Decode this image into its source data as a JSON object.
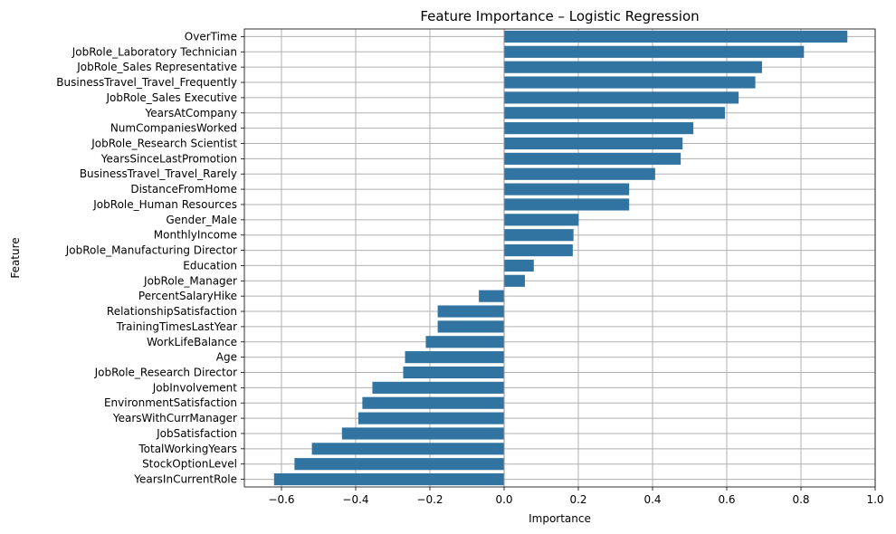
{
  "chart_data": {
    "type": "bar",
    "orientation": "horizontal",
    "title": "Feature Importance – Logistic Regression",
    "xlabel": "Importance",
    "ylabel": "Feature",
    "xlim": [
      -0.7,
      1.0
    ],
    "xticks": [
      -0.6,
      -0.4,
      -0.2,
      0.0,
      0.2,
      0.4,
      0.6,
      0.8,
      1.0
    ],
    "xtick_labels": [
      "−0.6",
      "−0.4",
      "−0.2",
      "0.0",
      "0.2",
      "0.4",
      "0.6",
      "0.8",
      "1.0"
    ],
    "grid": true,
    "bar_color": "#3274a1",
    "grid_color": "#b0b0b0",
    "categories": [
      "OverTime",
      "JobRole_Laboratory Technician",
      "JobRole_Sales Representative",
      "BusinessTravel_Travel_Frequently",
      "JobRole_Sales Executive",
      "YearsAtCompany",
      "NumCompaniesWorked",
      "JobRole_Research Scientist",
      "YearsSinceLastPromotion",
      "BusinessTravel_Travel_Rarely",
      "DistanceFromHome",
      "JobRole_Human Resources",
      "Gender_Male",
      "MonthlyIncome",
      "JobRole_Manufacturing Director",
      "Education",
      "JobRole_Manager",
      "PercentSalaryHike",
      "RelationshipSatisfaction",
      "TrainingTimesLastYear",
      "WorkLifeBalance",
      "Age",
      "JobRole_Research Director",
      "JobInvolvement",
      "EnvironmentSatisfaction",
      "YearsWithCurrManager",
      "JobSatisfaction",
      "TotalWorkingYears",
      "StockOptionLevel",
      "YearsInCurrentRole"
    ],
    "values": [
      0.925,
      0.808,
      0.695,
      0.677,
      0.632,
      0.595,
      0.51,
      0.481,
      0.476,
      0.407,
      0.337,
      0.337,
      0.201,
      0.187,
      0.185,
      0.08,
      0.056,
      -0.068,
      -0.179,
      -0.179,
      -0.211,
      -0.267,
      -0.272,
      -0.355,
      -0.382,
      -0.393,
      -0.437,
      -0.518,
      -0.565,
      -0.62
    ]
  }
}
